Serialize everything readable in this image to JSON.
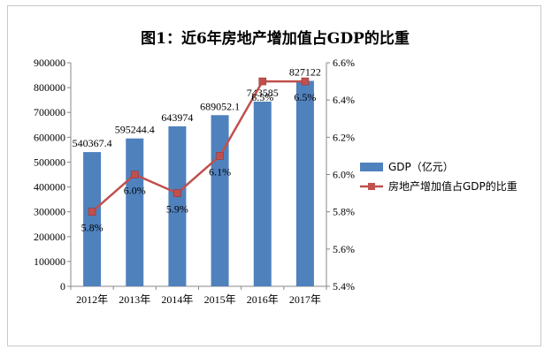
{
  "chart_data": {
    "type": "bar",
    "title": "图1：近6年房地产增加值占GDP的比重",
    "categories": [
      "2012年",
      "2013年",
      "2014年",
      "2015年",
      "2016年",
      "2017年"
    ],
    "series": [
      {
        "name": "GDP（亿元）",
        "type": "bar",
        "axis": "left",
        "color": "#4f81bd",
        "values": [
          540367.4,
          595244.4,
          643974,
          689052.1,
          743585,
          827122
        ],
        "labels": [
          "540367.4",
          "595244.4",
          "643974",
          "689052.1",
          "743585",
          "827122"
        ]
      },
      {
        "name": "房地产增加值占GDP的比重",
        "type": "line",
        "axis": "right",
        "color": "#c0504d",
        "values": [
          5.8,
          6.0,
          5.9,
          6.1,
          6.5,
          6.5
        ],
        "labels": [
          "5.8%",
          "6.0%",
          "5.9%",
          "6.1%",
          "6.5%",
          "6.5%"
        ]
      }
    ],
    "y_left": {
      "ylim": [
        0,
        900000
      ],
      "ticks": [
        "0",
        "100000",
        "200000",
        "300000",
        "400000",
        "500000",
        "600000",
        "700000",
        "800000",
        "900000"
      ]
    },
    "y_right": {
      "ylim": [
        5.4,
        6.6
      ],
      "ticks": [
        "5.4%",
        "5.6%",
        "5.8%",
        "6.0%",
        "6.2%",
        "6.4%",
        "6.6%"
      ]
    },
    "grid": false,
    "legend_position": "right"
  }
}
